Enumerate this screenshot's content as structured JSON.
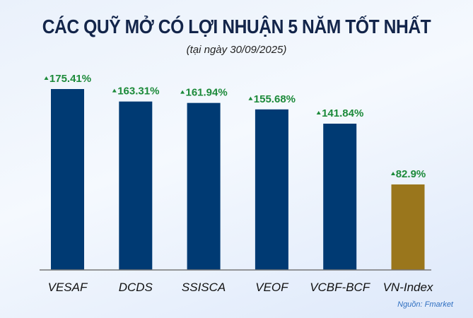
{
  "chart_data": {
    "type": "bar",
    "title": "CÁC QUỸ MỞ CÓ LỢI NHUẬN 5 NĂM TỐT NHẤT",
    "subtitle": "(tại ngày 30/09/2025)",
    "categories": [
      "VESAF",
      "DCDS",
      "SSISCA",
      "VEOF",
      "VCBF-BCF",
      "VN-Index"
    ],
    "values": [
      175.41,
      163.31,
      161.94,
      155.68,
      141.84,
      82.9
    ],
    "data_labels": [
      "175.41%",
      "163.31%",
      "161.94%",
      "155.68%",
      "141.84%",
      "82.9%"
    ],
    "bar_colors": [
      "#003a73",
      "#003a73",
      "#003a73",
      "#003a73",
      "#003a73",
      "#9a761c"
    ],
    "label_color": "#1c8a3a",
    "label_icon": "triangle-up-icon",
    "ylim": [
      0,
      180
    ],
    "grid": false,
    "source": "Nguồn: Fmarket"
  }
}
